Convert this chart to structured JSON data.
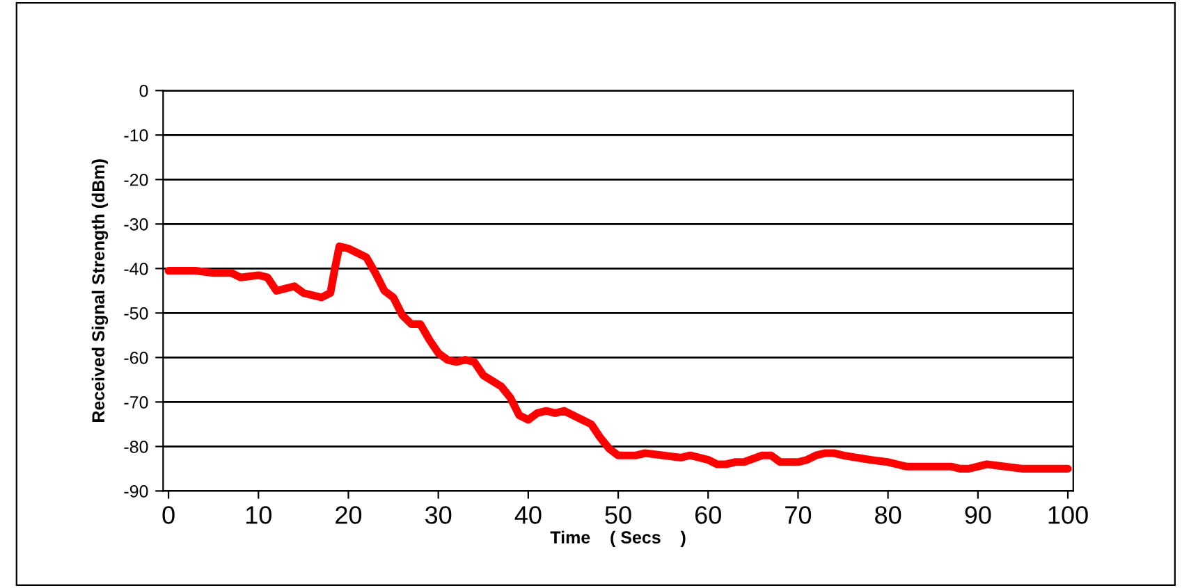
{
  "chart_data": {
    "type": "line",
    "xlabel": "Time    ( Secs    )",
    "ylabel": "Received Signal Strength (dBm)",
    "xlim": [
      -0.6,
      100.6
    ],
    "ylim": [
      -90,
      0
    ],
    "xticks": [
      0,
      10,
      20,
      30,
      40,
      50,
      60,
      70,
      80,
      90,
      100
    ],
    "yticks": [
      -90,
      -80,
      -70,
      -60,
      -50,
      -40,
      -30,
      -20,
      -10,
      0
    ],
    "grid": "y",
    "marker": "none",
    "line_style": "solid",
    "series": [
      {
        "color": "#ff0000",
        "x": [
          0,
          3,
          5,
          7,
          8,
          10,
          11,
          12,
          14,
          15,
          17,
          18,
          18.5,
          19,
          20,
          22,
          23,
          24,
          25,
          26,
          27,
          28,
          29,
          30,
          31,
          32,
          33,
          34,
          35,
          37,
          38,
          39,
          40,
          41,
          42,
          43,
          44,
          46,
          47,
          48,
          49,
          50,
          52,
          53,
          57,
          58,
          60,
          61,
          62,
          63,
          64,
          66,
          67,
          68,
          70,
          71,
          72,
          73,
          74,
          75,
          78,
          80,
          82,
          85,
          87,
          88,
          89,
          91,
          93,
          95,
          97,
          100
        ],
        "values": [
          -40.5,
          -40.5,
          -41,
          -41,
          -42,
          -41.5,
          -42,
          -45,
          -44,
          -45.5,
          -46.5,
          -45.5,
          -40,
          -35,
          -35.5,
          -37.5,
          -41,
          -45,
          -46.5,
          -50.5,
          -52.5,
          -52.5,
          -56,
          -59,
          -60.5,
          -61,
          -60.5,
          -61,
          -64,
          -66.5,
          -69,
          -73,
          -74,
          -72.5,
          -72,
          -72.5,
          -72,
          -74,
          -75,
          -78,
          -80.5,
          -82,
          -82,
          -81.5,
          -82.5,
          -82,
          -83,
          -84,
          -84,
          -83.5,
          -83.5,
          -82,
          -82,
          -83.5,
          -83.5,
          -83,
          -82,
          -81.5,
          -81.5,
          -82,
          -83,
          -83.5,
          -84.5,
          -84.5,
          -84.5,
          -85,
          -85,
          -84,
          -84.5,
          -85,
          -85,
          -85
        ]
      }
    ]
  }
}
